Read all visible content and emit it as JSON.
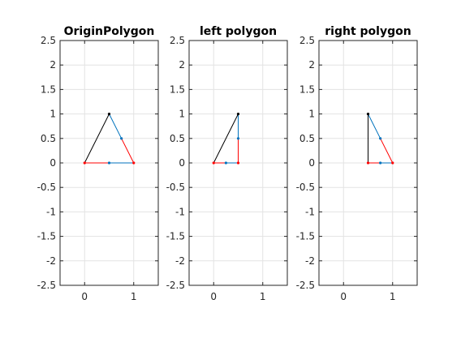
{
  "chart_data": [
    {
      "type": "line",
      "title": "OriginPolygon",
      "xlim": [
        -0.5,
        1.5
      ],
      "ylim": [
        -2.5,
        2.5
      ],
      "x_ticks": [
        0,
        1
      ],
      "y_ticks": [
        -2.5,
        -2,
        -1.5,
        -1,
        -0.5,
        0,
        0.5,
        1,
        1.5,
        2,
        2.5
      ],
      "grid": true,
      "segments": [
        {
          "from": [
            0,
            0
          ],
          "to": [
            0.5,
            0
          ],
          "color": "#ff0000"
        },
        {
          "from": [
            0.5,
            0
          ],
          "to": [
            1,
            0
          ],
          "color": "#0072bd"
        },
        {
          "from": [
            1,
            0
          ],
          "to": [
            0.75,
            0.5
          ],
          "color": "#ff0000"
        },
        {
          "from": [
            0.75,
            0.5
          ],
          "to": [
            0.5,
            1
          ],
          "color": "#0072bd"
        },
        {
          "from": [
            0.5,
            1
          ],
          "to": [
            0,
            0
          ],
          "color": "#000000"
        }
      ]
    },
    {
      "type": "line",
      "title": "left polygon",
      "xlim": [
        -0.5,
        1.5
      ],
      "ylim": [
        -2.5,
        2.5
      ],
      "x_ticks": [
        0,
        1
      ],
      "y_ticks": [
        -2.5,
        -2,
        -1.5,
        -1,
        -0.5,
        0,
        0.5,
        1,
        1.5,
        2,
        2.5
      ],
      "grid": true,
      "segments": [
        {
          "from": [
            0,
            0
          ],
          "to": [
            0.25,
            0
          ],
          "color": "#ff0000"
        },
        {
          "from": [
            0.25,
            0
          ],
          "to": [
            0.5,
            0
          ],
          "color": "#0072bd"
        },
        {
          "from": [
            0.5,
            0
          ],
          "to": [
            0.5,
            0.5
          ],
          "color": "#ff0000"
        },
        {
          "from": [
            0.5,
            0.5
          ],
          "to": [
            0.5,
            1
          ],
          "color": "#0072bd"
        },
        {
          "from": [
            0.5,
            1
          ],
          "to": [
            0,
            0
          ],
          "color": "#000000"
        }
      ]
    },
    {
      "type": "line",
      "title": "right polygon",
      "xlim": [
        -0.5,
        1.5
      ],
      "ylim": [
        -2.5,
        2.5
      ],
      "x_ticks": [
        0,
        1
      ],
      "y_ticks": [
        -2.5,
        -2,
        -1.5,
        -1,
        -0.5,
        0,
        0.5,
        1,
        1.5,
        2,
        2.5
      ],
      "grid": true,
      "segments": [
        {
          "from": [
            0.5,
            0
          ],
          "to": [
            0.75,
            0
          ],
          "color": "#ff0000"
        },
        {
          "from": [
            0.75,
            0
          ],
          "to": [
            1,
            0
          ],
          "color": "#0072bd"
        },
        {
          "from": [
            1,
            0
          ],
          "to": [
            0.75,
            0.5
          ],
          "color": "#ff0000"
        },
        {
          "from": [
            0.75,
            0.5
          ],
          "to": [
            0.5,
            1
          ],
          "color": "#0072bd"
        },
        {
          "from": [
            0.5,
            1
          ],
          "to": [
            0.5,
            0
          ],
          "color": "#000000"
        }
      ]
    }
  ]
}
